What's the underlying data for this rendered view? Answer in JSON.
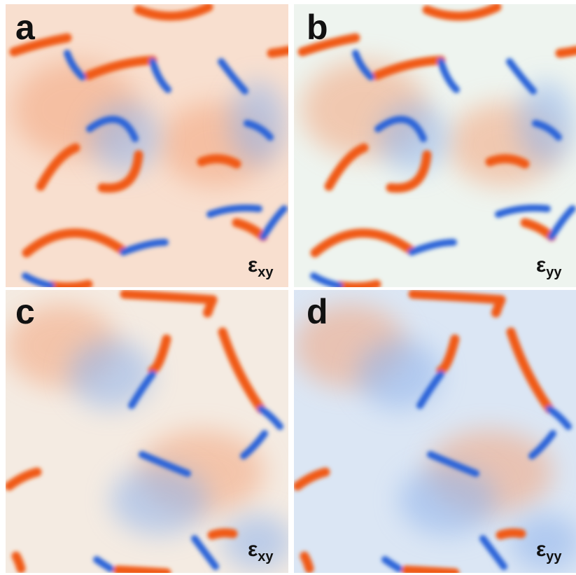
{
  "panels": [
    {
      "label": "a",
      "strain": {
        "symbol": "ε",
        "subscript": "xy"
      }
    },
    {
      "label": "b",
      "strain": {
        "symbol": "ε",
        "subscript": "yy"
      }
    },
    {
      "label": "c",
      "strain": {
        "symbol": "ε",
        "subscript": "xy"
      }
    },
    {
      "label": "d",
      "strain": {
        "symbol": "ε",
        "subscript": "yy"
      }
    }
  ]
}
